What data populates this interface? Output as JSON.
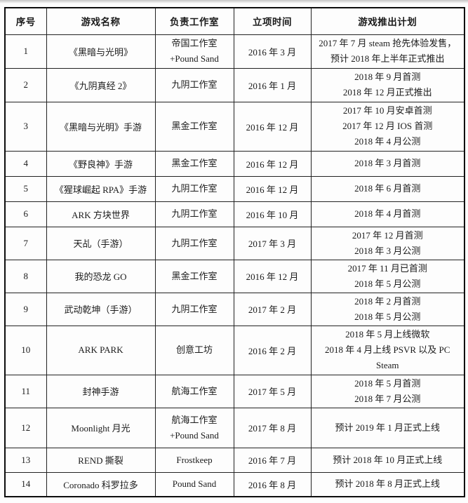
{
  "colors": {
    "background": "#fdfdfd",
    "border": "#222222",
    "outer_border": "#0d0d0d",
    "text": "#1b1b1b"
  },
  "table": {
    "columns": [
      "序号",
      "游戏名称",
      "负责工作室",
      "立项时间",
      "游戏推出计划"
    ],
    "rows": [
      {
        "no": "1",
        "name": "《黑暗与光明》",
        "studio": [
          "帝国工作室",
          "+Pound Sand"
        ],
        "start": "2016 年 3 月",
        "plan": [
          "2017 年 7 月 steam 抢先体验发售，",
          "预计 2018 年上半年正式推出"
        ]
      },
      {
        "no": "2",
        "name": "《九阴真经 2》",
        "studio": [
          "九阴工作室"
        ],
        "start": "2016 年 1 月",
        "plan": [
          "2018 年 9 月首测",
          "2018 年 12 月正式推出"
        ]
      },
      {
        "no": "3",
        "name": "《黑暗与光明》手游",
        "studio": [
          "黑金工作室"
        ],
        "start": "2016 年 12 月",
        "plan": [
          "2017 年 10 月安卓首测",
          "2017 年 12 月 IOS 首测",
          "2018 年 4 月公测"
        ]
      },
      {
        "no": "4",
        "name": "《野良神》手游",
        "studio": [
          "黑金工作室"
        ],
        "start": "2016 年 12 月",
        "plan": [
          "2018 年 3 月首测"
        ]
      },
      {
        "no": "5",
        "name": "《猩球崛起 RPA》手游",
        "studio": [
          "九阴工作室"
        ],
        "start": "2016 年 12 月",
        "plan": [
          "2018 年 6 月首测"
        ]
      },
      {
        "no": "6",
        "name": "ARK 方块世界",
        "studio": [
          "九阴工作室"
        ],
        "start": "2016 年 10 月",
        "plan": [
          "2018 年 4 月首测"
        ]
      },
      {
        "no": "7",
        "name": "天乩（手游）",
        "studio": [
          "九阴工作室"
        ],
        "start": "2017 年 3 月",
        "plan": [
          "2017 年 12 月首测",
          "2018 年 3 月公测"
        ]
      },
      {
        "no": "8",
        "name": "我的恐龙 GO",
        "studio": [
          "黑金工作室"
        ],
        "start": "2016 年 12 月",
        "plan": [
          "2017 年 11 月已首测",
          "2018 年 5 月公测"
        ]
      },
      {
        "no": "9",
        "name": "武动乾坤（手游）",
        "studio": [
          "九阴工作室"
        ],
        "start": "2017 年 2 月",
        "plan": [
          "2018 年 2 月首测",
          "2018 年 5 月公测"
        ]
      },
      {
        "no": "10",
        "name": "ARK PARK",
        "studio": [
          "创意工坊"
        ],
        "start": "2016 年 2 月",
        "plan": [
          "2018 年 5 月上线微软",
          "2018 年 4 月上线 PSVR 以及 PC",
          "Steam"
        ]
      },
      {
        "no": "11",
        "name": "封神手游",
        "studio": [
          "航海工作室"
        ],
        "start": "2017 年 5 月",
        "plan": [
          "2018 年 5 月首测",
          "2018 年 7 月公测"
        ]
      },
      {
        "no": "12",
        "name": "Moonlight 月光",
        "studio": [
          "航海工作室",
          "+Pound Sand"
        ],
        "start": "2017 年 8 月",
        "plan": [
          "预计 2019 年 1 月正式上线"
        ]
      },
      {
        "no": "13",
        "name": "REND 撕裂",
        "studio": [
          "Frostkeep"
        ],
        "start": "2016 年 7 月",
        "plan": [
          "预计 2018 年 10 月正式上线"
        ]
      },
      {
        "no": "14",
        "name": "Coronado 科罗拉多",
        "studio": [
          "Pound Sand"
        ],
        "start": "2016 年 8 月",
        "plan": [
          "预计 2018 年 8 月正式上线"
        ]
      }
    ]
  }
}
